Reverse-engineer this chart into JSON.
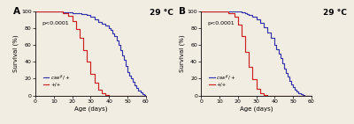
{
  "title_temp": "29 °C",
  "panel_A_label": "A",
  "panel_B_label": "B",
  "pvalue_text": "p<0.0001",
  "xlabel": "Age (days)",
  "ylabel": "Survival (%)",
  "legend_blue": "$csw^{\\beta}/+$",
  "legend_red": "+/+",
  "xlim": [
    0,
    60
  ],
  "ylim": [
    0,
    100
  ],
  "xticks": [
    0,
    10,
    20,
    30,
    40,
    50,
    60
  ],
  "yticks": [
    0,
    20,
    40,
    60,
    80,
    100
  ],
  "color_blue": "#3333aa",
  "color_red": "#cc2222",
  "background": "#f2ede3",
  "A_blue_x": [
    0,
    8,
    15,
    20,
    25,
    28,
    30,
    32,
    34,
    36,
    38,
    40,
    41,
    42,
    43,
    44,
    45,
    46,
    47,
    48,
    49,
    50,
    51,
    52,
    53,
    54,
    55,
    56,
    57,
    58,
    59,
    60
  ],
  "A_blue_y": [
    100,
    100,
    99,
    98,
    97,
    95,
    93,
    90,
    87,
    85,
    83,
    80,
    78,
    74,
    70,
    65,
    60,
    54,
    48,
    42,
    35,
    28,
    24,
    20,
    16,
    12,
    9,
    6,
    4,
    2,
    1,
    0
  ],
  "A_red_x": [
    0,
    10,
    15,
    18,
    20,
    22,
    24,
    26,
    28,
    30,
    32,
    34,
    36,
    38,
    40,
    42,
    60
  ],
  "A_red_y": [
    100,
    100,
    98,
    94,
    88,
    79,
    68,
    54,
    40,
    26,
    15,
    7,
    3,
    1,
    0,
    0,
    0
  ],
  "B_blue_x": [
    0,
    5,
    10,
    15,
    18,
    20,
    22,
    24,
    25,
    26,
    28,
    30,
    32,
    34,
    36,
    38,
    40,
    41,
    42,
    43,
    44,
    45,
    46,
    47,
    48,
    49,
    50,
    51,
    52,
    53,
    54,
    55,
    56,
    57,
    60
  ],
  "B_blue_y": [
    100,
    100,
    100,
    100,
    100,
    100,
    99,
    98,
    97,
    96,
    93,
    90,
    86,
    81,
    75,
    68,
    60,
    55,
    50,
    44,
    38,
    32,
    27,
    22,
    17,
    13,
    10,
    7,
    5,
    3,
    2,
    1,
    0,
    0,
    0
  ],
  "B_red_x": [
    0,
    10,
    15,
    18,
    20,
    22,
    24,
    26,
    28,
    30,
    32,
    34,
    36,
    38,
    40,
    42,
    60
  ],
  "B_red_y": [
    100,
    100,
    98,
    93,
    84,
    70,
    52,
    34,
    19,
    8,
    3,
    1,
    0,
    0,
    0,
    0,
    0
  ]
}
